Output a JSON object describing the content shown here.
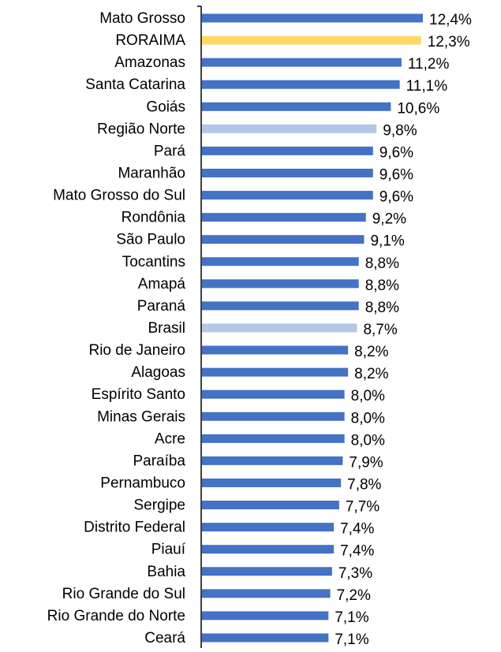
{
  "chart_data": {
    "type": "barh",
    "categories": [
      "Mato Grosso",
      "RORAIMA",
      "Amazonas",
      "Santa Catarina",
      "Goiás",
      "Região Norte",
      "Pará",
      "Maranhão",
      "Mato Grosso do Sul",
      "Rondônia",
      "São Paulo",
      "Tocantins",
      "Amapá",
      "Paraná",
      "Brasil",
      "Rio de Janeiro",
      "Alagoas",
      "Espírito Santo",
      "Minas Gerais",
      "Acre",
      "Paraíba",
      "Pernambuco",
      "Sergipe",
      "Distrito Federal",
      "Piauí",
      "Bahia",
      "Rio Grande do Sul",
      "Rio Grande do Norte",
      "Ceará"
    ],
    "values": [
      12.4,
      12.3,
      11.2,
      11.1,
      10.6,
      9.8,
      9.6,
      9.6,
      9.6,
      9.2,
      9.1,
      8.8,
      8.8,
      8.8,
      8.7,
      8.2,
      8.2,
      8.0,
      8.0,
      8.0,
      7.9,
      7.8,
      7.7,
      7.4,
      7.4,
      7.3,
      7.2,
      7.1,
      7.1
    ],
    "value_labels": [
      "12,4%",
      "12,3%",
      "11,2%",
      "11,1%",
      "10,6%",
      "9,8%",
      "9,6%",
      "9,6%",
      "9,6%",
      "9,2%",
      "9,1%",
      "8,8%",
      "8,8%",
      "8,8%",
      "8,7%",
      "8,2%",
      "8,2%",
      "8,0%",
      "8,0%",
      "8,0%",
      "7,9%",
      "7,8%",
      "7,7%",
      "7,4%",
      "7,4%",
      "7,3%",
      "7,2%",
      "7,1%",
      "7,1%"
    ],
    "colors": [
      "#4472c4",
      "#ffd966",
      "#4472c4",
      "#4472c4",
      "#4472c4",
      "#b4c7e7",
      "#4472c4",
      "#4472c4",
      "#4472c4",
      "#4472c4",
      "#4472c4",
      "#4472c4",
      "#4472c4",
      "#4472c4",
      "#b4c7e7",
      "#4472c4",
      "#4472c4",
      "#4472c4",
      "#4472c4",
      "#4472c4",
      "#4472c4",
      "#4472c4",
      "#4472c4",
      "#4472c4",
      "#4472c4",
      "#4472c4",
      "#4472c4",
      "#4472c4",
      "#4472c4"
    ],
    "xlim": [
      0,
      12.4
    ]
  }
}
